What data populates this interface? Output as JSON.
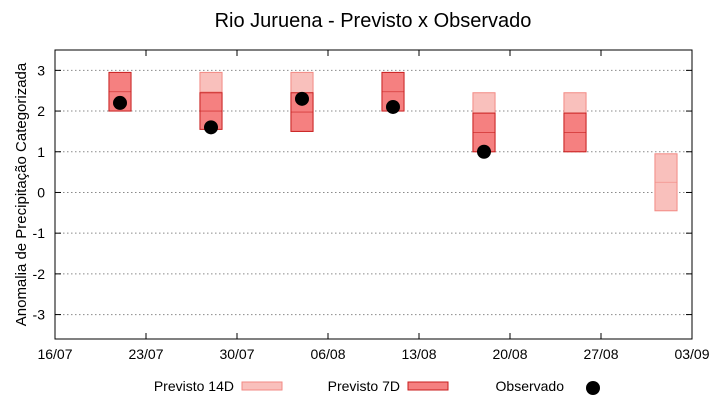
{
  "chart_data": {
    "type": "floating-bar-with-points",
    "title": "Rio Juruena - Previsto x Observado",
    "ylabel": "Anomalia de Precipitação Categorizada",
    "xlabel": "",
    "xlim": [
      "2025-07-16",
      "2025-09-03"
    ],
    "x_ticks": [
      "16/07",
      "23/07",
      "30/07",
      "06/08",
      "13/08",
      "20/08",
      "27/08",
      "03/09"
    ],
    "x_tick_dates": [
      "2025-07-16",
      "2025-07-23",
      "2025-07-30",
      "2025-08-06",
      "2025-08-13",
      "2025-08-20",
      "2025-08-27",
      "2025-09-03"
    ],
    "ylim": [
      -3.6,
      3.5
    ],
    "y_ticks": [
      "3",
      "2",
      "1",
      "0",
      "-1",
      "-2",
      "-3"
    ],
    "y_tick_values": [
      3,
      2,
      1,
      0,
      -1,
      -2,
      -3
    ],
    "grid": true,
    "legend_position": "bottom",
    "series": [
      {
        "name": "Previsto 14D",
        "color": "#f9c0bc",
        "edge_color": "#f28a84",
        "points": [
          {
            "x": "2025-07-28",
            "low": 2.0,
            "high": 2.95
          },
          {
            "x": "2025-08-04",
            "low": 1.5,
            "high": 2.95
          },
          {
            "x": "2025-08-18",
            "low": 1.0,
            "high": 2.45
          },
          {
            "x": "2025-08-25",
            "low": 1.0,
            "high": 2.45
          },
          {
            "x": "2025-09-01",
            "low": -0.45,
            "high": 0.95
          }
        ]
      },
      {
        "name": "Previsto 7D",
        "color": "#f58080",
        "edge_color": "#c81e1e",
        "points": [
          {
            "x": "2025-07-21",
            "low": 2.0,
            "high": 2.95
          },
          {
            "x": "2025-07-28",
            "low": 1.55,
            "high": 2.45
          },
          {
            "x": "2025-08-04",
            "low": 1.5,
            "high": 2.45
          },
          {
            "x": "2025-08-11",
            "low": 2.0,
            "high": 2.95
          },
          {
            "x": "2025-08-18",
            "low": 1.0,
            "high": 1.95
          },
          {
            "x": "2025-08-25",
            "low": 1.0,
            "high": 1.95
          }
        ]
      },
      {
        "name": "Observado",
        "color": "#000000",
        "points": [
          {
            "x": "2025-07-21",
            "y": 2.2
          },
          {
            "x": "2025-07-28",
            "y": 1.6
          },
          {
            "x": "2025-08-04",
            "y": 2.3
          },
          {
            "x": "2025-08-11",
            "y": 2.1
          },
          {
            "x": "2025-08-18",
            "y": 1.0
          }
        ]
      }
    ]
  }
}
